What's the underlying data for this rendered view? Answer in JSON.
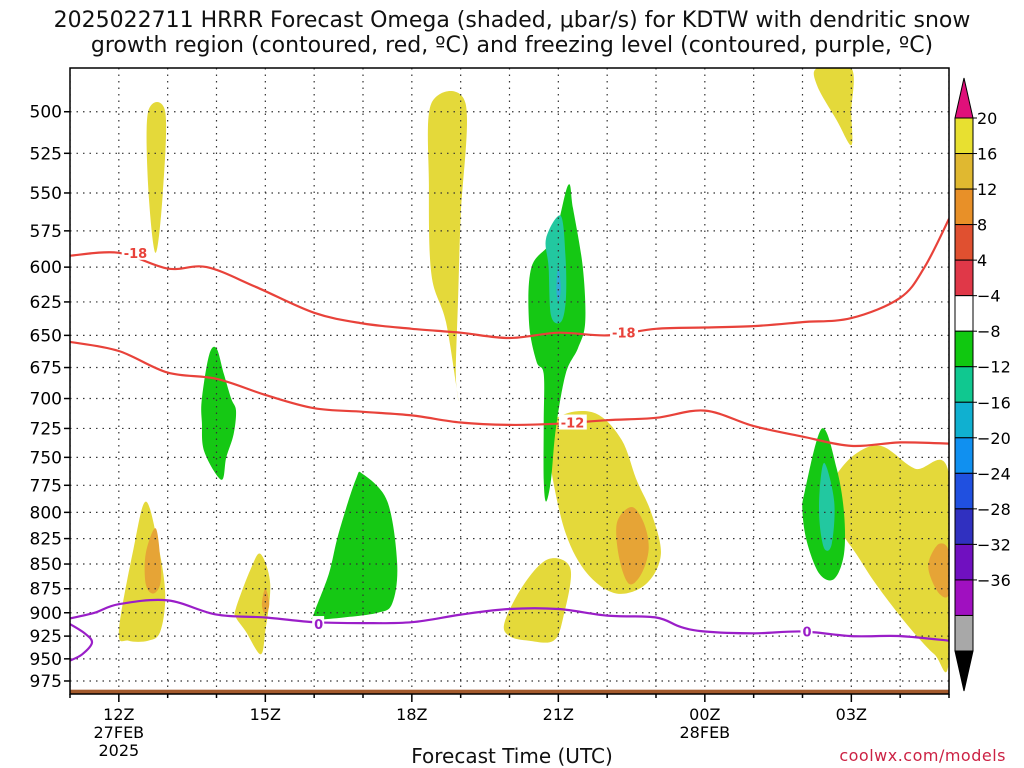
{
  "title": "2025022711 HRRR Forecast Omega (shaded, μbar/s) for KDTW with dendritic snow\ngrowth region (contoured, red, ºC) and freezing level (contoured, purple, ºC)",
  "credit": "coolwx.com/models",
  "chart_data": {
    "type": "contour",
    "title": "2025022711 HRRR Forecast Omega (shaded, μbar/s) for KDTW with dendritic snow growth region (contoured, red, ºC) and freezing level (contoured, purple, ºC)",
    "xlabel": "Forecast Time (UTC)",
    "ylabel": "",
    "x_range_hours": [
      -1.0,
      17.0
    ],
    "y_range_hPa": [
      475,
      990
    ],
    "y_ticks": [
      500,
      525,
      550,
      575,
      600,
      625,
      650,
      675,
      700,
      725,
      750,
      775,
      800,
      825,
      850,
      875,
      900,
      925,
      950,
      975
    ],
    "x_ticks": [
      {
        "hour": 0,
        "lines": [
          "12Z",
          "27FEB",
          "2025"
        ]
      },
      {
        "hour": 3,
        "lines": [
          "15Z"
        ]
      },
      {
        "hour": 6,
        "lines": [
          "18Z"
        ]
      },
      {
        "hour": 9,
        "lines": [
          "21Z"
        ]
      },
      {
        "hour": 12,
        "lines": [
          "00Z",
          "28FEB"
        ]
      },
      {
        "hour": 15,
        "lines": [
          "03Z"
        ]
      }
    ],
    "grid": true,
    "colorbar": {
      "position": "right",
      "labels": [
        "20",
        "16",
        "12",
        "8",
        "4",
        "−4",
        "−8",
        "−12",
        "−16",
        "−20",
        "−24",
        "−28",
        "−32",
        "−36"
      ],
      "colors": [
        "#e8e030",
        "#e0b830",
        "#e89028",
        "#e05030",
        "#e03848",
        "#ffffff",
        "#10c810",
        "#10c890",
        "#10b0d0",
        "#1090f0",
        "#2050e0",
        "#3030c0",
        "#7010c0",
        "#a010c0",
        "#a8a8a8"
      ],
      "top_triangle": "#e0107a",
      "bottom_triangle": "#000000"
    },
    "omega_regions": [
      {
        "color": "#e4d93a",
        "points": [
          [
            0.6,
            500
          ],
          [
            0.95,
            500
          ],
          [
            0.9,
            550
          ],
          [
            0.75,
            590
          ],
          [
            0.6,
            545
          ]
        ]
      },
      {
        "color": "#e4d93a",
        "points": [
          [
            6.4,
            495
          ],
          [
            7.1,
            495
          ],
          [
            7.0,
            565
          ],
          [
            6.95,
            620
          ],
          [
            6.9,
            680
          ],
          [
            6.95,
            700
          ],
          [
            6.7,
            640
          ],
          [
            6.4,
            605
          ],
          [
            6.35,
            545
          ]
        ]
      },
      {
        "color": "#e4d93a",
        "points": [
          [
            14.3,
            475
          ],
          [
            15.0,
            475
          ],
          [
            15.0,
            500
          ],
          [
            15.0,
            520
          ],
          [
            14.7,
            505
          ],
          [
            14.3,
            485
          ]
        ]
      },
      {
        "color": "#e4d93a",
        "points": [
          [
            0.0,
            920
          ],
          [
            0.3,
            835
          ],
          [
            0.55,
            790
          ],
          [
            0.8,
            830
          ],
          [
            0.95,
            880
          ],
          [
            0.85,
            920
          ],
          [
            0.6,
            930
          ],
          [
            0.2,
            930
          ]
        ]
      },
      {
        "color": "#e4d93a",
        "points": [
          [
            2.4,
            895
          ],
          [
            2.7,
            855
          ],
          [
            2.9,
            840
          ],
          [
            3.1,
            870
          ],
          [
            3.0,
            920
          ],
          [
            2.9,
            945
          ],
          [
            2.6,
            920
          ],
          [
            2.4,
            905
          ]
        ]
      },
      {
        "color": "#e4d93a",
        "points": [
          [
            7.9,
            910
          ],
          [
            8.3,
            870
          ],
          [
            8.8,
            845
          ],
          [
            9.25,
            855
          ],
          [
            9.1,
            905
          ],
          [
            8.9,
            930
          ],
          [
            8.4,
            930
          ],
          [
            8.0,
            925
          ]
        ]
      },
      {
        "color": "#e4d93a",
        "points": [
          [
            8.8,
            725
          ],
          [
            9.2,
            712
          ],
          [
            9.8,
            713
          ],
          [
            10.3,
            735
          ],
          [
            10.6,
            770
          ],
          [
            10.9,
            800
          ],
          [
            11.1,
            840
          ],
          [
            10.8,
            870
          ],
          [
            10.2,
            880
          ],
          [
            9.6,
            860
          ],
          [
            9.15,
            820
          ],
          [
            8.85,
            760
          ]
        ]
      },
      {
        "color": "#e4d93a",
        "points": [
          [
            14.5,
            780
          ],
          [
            15.0,
            750
          ],
          [
            15.6,
            740
          ],
          [
            16.3,
            760
          ],
          [
            17.0,
            765
          ],
          [
            17.0,
            950
          ],
          [
            16.7,
            945
          ],
          [
            16.1,
            910
          ],
          [
            15.5,
            870
          ],
          [
            15.1,
            840
          ],
          [
            14.8,
            820
          ],
          [
            14.5,
            800
          ]
        ]
      },
      {
        "color": "#e6a436",
        "points": [
          [
            0.55,
            840
          ],
          [
            0.75,
            815
          ],
          [
            0.85,
            845
          ],
          [
            0.85,
            870
          ],
          [
            0.7,
            880
          ],
          [
            0.55,
            870
          ]
        ]
      },
      {
        "color": "#e6a436",
        "points": [
          [
            2.93,
            890
          ],
          [
            3.0,
            875
          ],
          [
            3.08,
            890
          ],
          [
            3.03,
            900
          ],
          [
            2.97,
            900
          ]
        ]
      },
      {
        "color": "#e6a436",
        "points": [
          [
            10.2,
            810
          ],
          [
            10.5,
            795
          ],
          [
            10.75,
            810
          ],
          [
            10.85,
            835
          ],
          [
            10.7,
            860
          ],
          [
            10.45,
            870
          ],
          [
            10.25,
            845
          ]
        ]
      },
      {
        "color": "#e6a436",
        "points": [
          [
            16.6,
            845
          ],
          [
            16.8,
            830
          ],
          [
            17.0,
            838
          ],
          [
            17.0,
            880
          ],
          [
            16.8,
            880
          ],
          [
            16.6,
            860
          ]
        ]
      },
      {
        "color": "#15c814",
        "points": [
          [
            1.7,
            700
          ],
          [
            1.85,
            665
          ],
          [
            2.0,
            660
          ],
          [
            2.15,
            680
          ],
          [
            2.3,
            700
          ],
          [
            2.4,
            710
          ],
          [
            2.35,
            730
          ],
          [
            2.2,
            750
          ],
          [
            2.1,
            770
          ],
          [
            1.75,
            745
          ],
          [
            1.7,
            720
          ]
        ]
      },
      {
        "color": "#15c814",
        "points": [
          [
            4.0,
            900
          ],
          [
            4.3,
            860
          ],
          [
            4.5,
            820
          ],
          [
            4.85,
            770
          ],
          [
            5.0,
            765
          ],
          [
            5.5,
            790
          ],
          [
            5.7,
            850
          ],
          [
            5.6,
            890
          ],
          [
            5.3,
            900
          ],
          [
            4.6,
            905
          ],
          [
            4.0,
            907
          ]
        ]
      },
      {
        "color": "#15c814",
        "points": [
          [
            8.9,
            580
          ],
          [
            9.2,
            545
          ],
          [
            9.3,
            560
          ],
          [
            9.5,
            600
          ],
          [
            9.55,
            640
          ],
          [
            9.4,
            660
          ],
          [
            9.15,
            680
          ],
          [
            8.95,
            725
          ],
          [
            8.85,
            770
          ],
          [
            8.75,
            790
          ],
          [
            8.7,
            770
          ],
          [
            8.7,
            720
          ],
          [
            8.7,
            680
          ],
          [
            8.55,
            670
          ],
          [
            8.4,
            640
          ],
          [
            8.45,
            600
          ]
        ]
      },
      {
        "color": "#15c814",
        "points": [
          [
            14.05,
            780
          ],
          [
            14.4,
            725
          ],
          [
            14.7,
            760
          ],
          [
            14.85,
            800
          ],
          [
            14.85,
            840
          ],
          [
            14.65,
            865
          ],
          [
            14.35,
            860
          ],
          [
            14.1,
            830
          ],
          [
            14.0,
            800
          ]
        ]
      },
      {
        "color": "#22c8a0",
        "points": [
          [
            8.75,
            580
          ],
          [
            9.05,
            565
          ],
          [
            9.15,
            595
          ],
          [
            9.15,
            625
          ],
          [
            9.05,
            640
          ],
          [
            8.85,
            635
          ],
          [
            8.8,
            600
          ]
        ]
      },
      {
        "color": "#22c8a0",
        "points": [
          [
            14.45,
            755
          ],
          [
            14.65,
            790
          ],
          [
            14.6,
            830
          ],
          [
            14.45,
            835
          ],
          [
            14.35,
            810
          ],
          [
            14.35,
            780
          ]
        ]
      },
      {
        "color": "#33a8d8",
        "points": [
          [
            9.0,
            600
          ],
          [
            9.05,
            615
          ],
          [
            9.0,
            625
          ],
          [
            8.96,
            615
          ]
        ]
      }
    ],
    "series": [
      {
        "name": "-18",
        "color": "#e8423a",
        "points": [
          [
            -1.0,
            592
          ],
          [
            0.0,
            590
          ],
          [
            1.0,
            601
          ],
          [
            1.8,
            600
          ],
          [
            2.8,
            614
          ],
          [
            4.0,
            633
          ],
          [
            5.0,
            641
          ],
          [
            6.0,
            645
          ],
          [
            7.0,
            648
          ],
          [
            8.0,
            652
          ],
          [
            9.0,
            648
          ],
          [
            10.0,
            650
          ],
          [
            11.0,
            645
          ],
          [
            12.0,
            644
          ],
          [
            13.0,
            643
          ],
          [
            14.0,
            640
          ],
          [
            15.0,
            637
          ],
          [
            16.0,
            622
          ],
          [
            16.5,
            600
          ],
          [
            17.0,
            567
          ]
        ],
        "labels": [
          [
            0.1,
            590
          ],
          [
            10.1,
            648
          ]
        ]
      },
      {
        "name": "-12",
        "color": "#e8423a",
        "points": [
          [
            -1.0,
            655
          ],
          [
            0.0,
            662
          ],
          [
            1.0,
            679
          ],
          [
            2.0,
            684
          ],
          [
            3.0,
            697
          ],
          [
            4.0,
            708
          ],
          [
            5.0,
            711
          ],
          [
            6.0,
            714
          ],
          [
            7.0,
            720
          ],
          [
            8.0,
            722
          ],
          [
            9.0,
            721
          ],
          [
            10.0,
            718
          ],
          [
            11.0,
            716
          ],
          [
            12.0,
            710
          ],
          [
            13.0,
            723
          ],
          [
            14.0,
            732
          ],
          [
            15.0,
            740
          ],
          [
            16.0,
            737
          ],
          [
            17.0,
            738
          ]
        ],
        "labels": [
          [
            9.05,
            720
          ]
        ]
      },
      {
        "name": "0",
        "color": "#9a1ec8",
        "points": [
          [
            -1.0,
            906
          ],
          [
            -0.5,
            900
          ],
          [
            0.0,
            891
          ],
          [
            1.0,
            887
          ],
          [
            2.0,
            902
          ],
          [
            3.0,
            905
          ],
          [
            4.0,
            910
          ],
          [
            5.0,
            911
          ],
          [
            6.0,
            910
          ],
          [
            7.0,
            902
          ],
          [
            8.0,
            896
          ],
          [
            9.0,
            896
          ],
          [
            10.0,
            903
          ],
          [
            11.0,
            905
          ],
          [
            11.5,
            915
          ],
          [
            12.0,
            920
          ],
          [
            13.0,
            922
          ],
          [
            14.0,
            920
          ],
          [
            15.0,
            925
          ],
          [
            16.0,
            925
          ],
          [
            17.0,
            930
          ]
        ],
        "labels": [
          [
            4.0,
            912
          ],
          [
            14.0,
            920
          ]
        ]
      },
      {
        "name": "0",
        "color": "#9a1ec8",
        "points": [
          [
            -1.0,
            912
          ],
          [
            -0.7,
            922
          ],
          [
            -0.55,
            932
          ],
          [
            -0.75,
            945
          ],
          [
            -1.0,
            952
          ]
        ],
        "labels": []
      }
    ],
    "terrain": {
      "color": "#a35a2c",
      "pressure_hPa": 985
    }
  }
}
